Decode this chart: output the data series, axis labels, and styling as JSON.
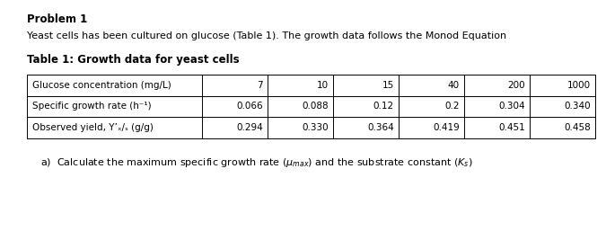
{
  "title": "Problem 1",
  "intro_text": "Yeast cells has been cultured on glucose (Table 1). The growth data follows the Monod Equation",
  "table_title": "Table 1: Growth data for yeast cells",
  "row_labels": [
    "Glucose concentration (mg/L)",
    "Specific growth rate (h⁻¹)",
    "Observed yield, Y’ₓ/ₛ (g/g)"
  ],
  "row1_values": [
    "7",
    "10",
    "15",
    "40",
    "200",
    "1000"
  ],
  "row2_values": [
    "0.066",
    "0.088",
    "0.12",
    "0.2",
    "0.304",
    "0.340"
  ],
  "row3_values": [
    "0.294",
    "0.330",
    "0.364",
    "0.419",
    "0.451",
    "0.458"
  ],
  "bg_color": "#ffffff",
  "text_color": "#000000",
  "font_size_title": 8.5,
  "font_size_body": 8.0,
  "font_size_table": 7.5
}
